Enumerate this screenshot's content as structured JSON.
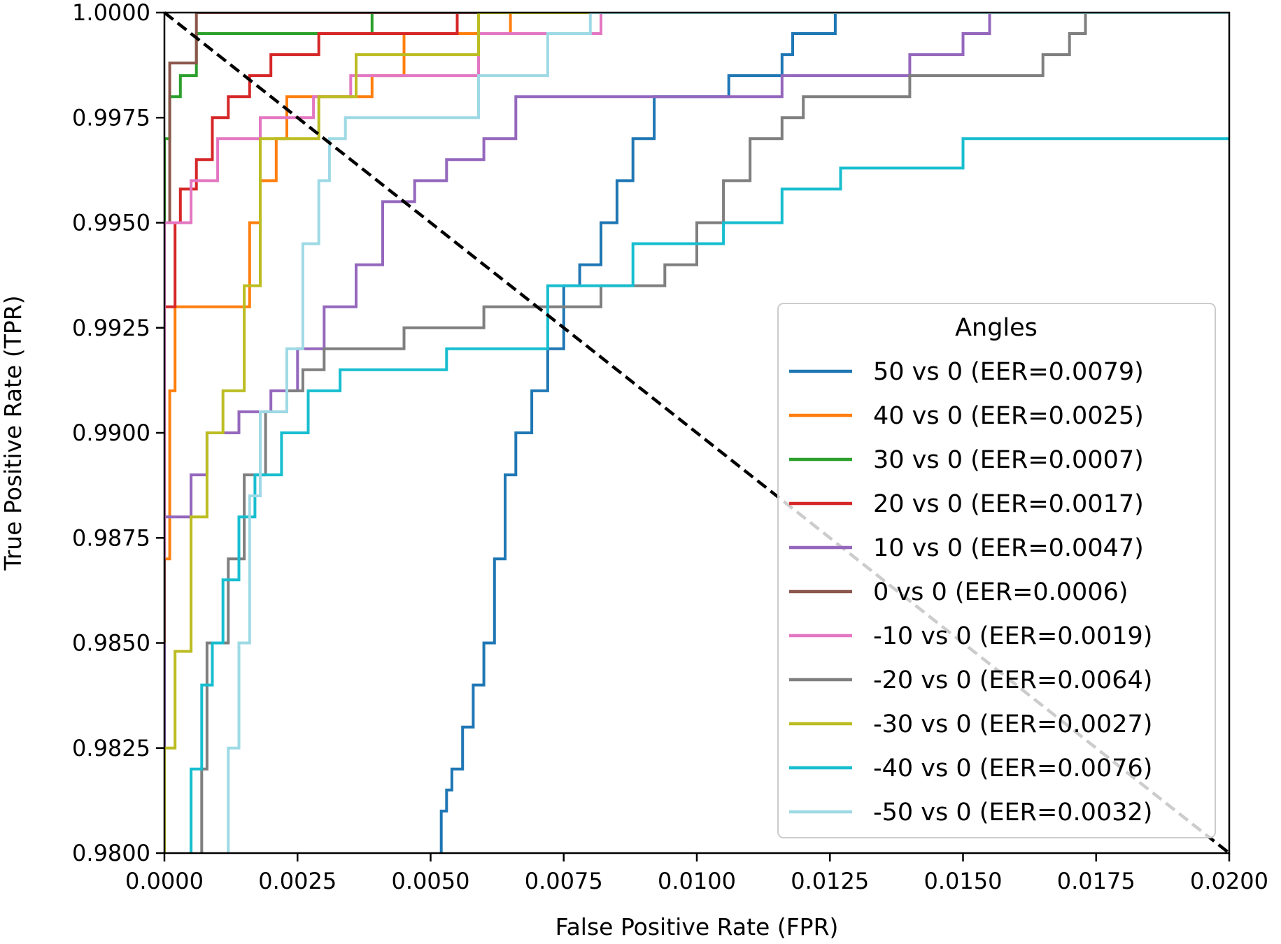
{
  "chart_data": {
    "type": "line",
    "xlabel": "False Positive Rate (FPR)",
    "ylabel": "True Positive Rate (TPR)",
    "xlim": [
      0.0,
      0.02
    ],
    "ylim": [
      0.98,
      1.0
    ],
    "xticks": [
      "0.0000",
      "0.0025",
      "0.0050",
      "0.0075",
      "0.0100",
      "0.0125",
      "0.0150",
      "0.0175",
      "0.0200"
    ],
    "yticks": [
      "0.9800",
      "0.9825",
      "0.9850",
      "0.9875",
      "0.9900",
      "0.9925",
      "0.9950",
      "0.9975",
      "1.0000"
    ],
    "grid": false,
    "legend": {
      "title": "Angles",
      "position": "lower-right"
    },
    "diagonal": {
      "style": "dashed",
      "color": "#000000",
      "x": [
        0.0,
        0.02
      ],
      "y": [
        1.0,
        0.98
      ]
    },
    "series": [
      {
        "name": "50 vs 0 (EER=0.0079)",
        "color": "#1f77b4",
        "x": [
          0.0052,
          0.0052,
          0.0053,
          0.0053,
          0.0054,
          0.0054,
          0.0056,
          0.0056,
          0.0058,
          0.0058,
          0.006,
          0.006,
          0.0062,
          0.0062,
          0.0064,
          0.0064,
          0.0066,
          0.0066,
          0.0069,
          0.0069,
          0.0072,
          0.0072,
          0.0075,
          0.0075,
          0.0078,
          0.0078,
          0.0082,
          0.0082,
          0.0085,
          0.0085,
          0.0088,
          0.0088,
          0.0092,
          0.0092,
          0.0096,
          0.0096,
          0.0106,
          0.0106,
          0.0116,
          0.0116,
          0.0118,
          0.0118,
          0.0126,
          0.0126,
          0.02
        ],
        "y": [
          0.98,
          0.981,
          0.981,
          0.9815,
          0.9815,
          0.982,
          0.982,
          0.983,
          0.983,
          0.984,
          0.984,
          0.985,
          0.985,
          0.987,
          0.987,
          0.989,
          0.989,
          0.99,
          0.99,
          0.991,
          0.991,
          0.992,
          0.992,
          0.9935,
          0.9935,
          0.994,
          0.994,
          0.995,
          0.995,
          0.996,
          0.996,
          0.997,
          0.997,
          0.998,
          0.998,
          0.998,
          0.998,
          0.9985,
          0.9985,
          0.999,
          0.999,
          0.9995,
          0.9995,
          1.0,
          1.0
        ]
      },
      {
        "name": "40 vs 0 (EER=0.0025)",
        "color": "#ff7f0e",
        "x": [
          0.0,
          0.0,
          0.0001,
          0.0001,
          0.0002,
          0.0002,
          0.0004,
          0.0004,
          0.0016,
          0.0016,
          0.0018,
          0.0018,
          0.0021,
          0.0021,
          0.0023,
          0.0023,
          0.0035,
          0.0035,
          0.0039,
          0.0039,
          0.0045,
          0.0045,
          0.0055,
          0.0055,
          0.0065,
          0.0065,
          0.02
        ],
        "y": [
          0.98,
          0.987,
          0.987,
          0.991,
          0.991,
          0.993,
          0.993,
          0.993,
          0.993,
          0.995,
          0.995,
          0.996,
          0.996,
          0.997,
          0.997,
          0.998,
          0.998,
          0.998,
          0.998,
          0.9985,
          0.9985,
          0.9995,
          0.9995,
          0.9995,
          0.9995,
          1.0,
          1.0
        ]
      },
      {
        "name": "30 vs 0 (EER=0.0007)",
        "color": "#2ca02c",
        "x": [
          0.0,
          0.0,
          0.0001,
          0.0001,
          0.0003,
          0.0003,
          0.0006,
          0.0006,
          0.0016,
          0.0016,
          0.0039,
          0.0039,
          0.02
        ],
        "y": [
          0.98,
          0.997,
          0.997,
          0.998,
          0.998,
          0.9985,
          0.9985,
          0.9995,
          0.9995,
          0.9995,
          0.9995,
          1.0,
          1.0
        ]
      },
      {
        "name": "20 vs 0 (EER=0.0017)",
        "color": "#d62728",
        "x": [
          0.0,
          0.0,
          0.0002,
          0.0002,
          0.0003,
          0.0003,
          0.0005,
          0.0005,
          0.0006,
          0.0006,
          0.0009,
          0.0009,
          0.0012,
          0.0012,
          0.0016,
          0.0016,
          0.002,
          0.002,
          0.0029,
          0.0029,
          0.0055,
          0.0055,
          0.02
        ],
        "y": [
          0.982,
          0.993,
          0.993,
          0.995,
          0.995,
          0.9958,
          0.9958,
          0.9958,
          0.9958,
          0.9965,
          0.9965,
          0.9975,
          0.9975,
          0.998,
          0.998,
          0.9985,
          0.9985,
          0.999,
          0.999,
          0.9995,
          0.9995,
          1.0,
          1.0
        ]
      },
      {
        "name": "10 vs 0 (EER=0.0047)",
        "color": "#9467bd",
        "x": [
          0.0,
          0.0,
          0.0002,
          0.0002,
          0.0005,
          0.0005,
          0.0008,
          0.0008,
          0.0014,
          0.0014,
          0.002,
          0.002,
          0.0025,
          0.0025,
          0.003,
          0.003,
          0.0036,
          0.0036,
          0.0041,
          0.0041,
          0.0047,
          0.0047,
          0.0053,
          0.0053,
          0.006,
          0.006,
          0.0066,
          0.0066,
          0.0072,
          0.0072,
          0.0116,
          0.0116,
          0.0135,
          0.0135,
          0.014,
          0.014,
          0.015,
          0.015,
          0.0155,
          0.0155,
          0.02
        ],
        "y": [
          0.982,
          0.988,
          0.988,
          0.988,
          0.988,
          0.989,
          0.989,
          0.99,
          0.99,
          0.9905,
          0.9905,
          0.991,
          0.991,
          0.992,
          0.992,
          0.993,
          0.993,
          0.994,
          0.994,
          0.9955,
          0.9955,
          0.996,
          0.996,
          0.9965,
          0.9965,
          0.997,
          0.997,
          0.998,
          0.998,
          0.998,
          0.998,
          0.9985,
          0.9985,
          0.9985,
          0.9985,
          0.999,
          0.999,
          0.9995,
          0.9995,
          1.0,
          1.0
        ]
      },
      {
        "name": "0 vs 0 (EER=0.0006)",
        "color": "#8c564b",
        "x": [
          0.0,
          0.0,
          0.0001,
          0.0001,
          0.0006,
          0.0006,
          0.0006,
          0.02
        ],
        "y": [
          0.985,
          0.995,
          0.995,
          0.9988,
          0.9988,
          0.9992,
          1.0,
          1.0
        ]
      },
      {
        "name": "-10 vs 0 (EER=0.0019)",
        "color": "#e377c2",
        "x": [
          0.0,
          0.0,
          0.0005,
          0.0005,
          0.001,
          0.001,
          0.0018,
          0.0018,
          0.0023,
          0.0023,
          0.0028,
          0.0028,
          0.0035,
          0.0035,
          0.0049,
          0.0049,
          0.0059,
          0.0059,
          0.0082,
          0.0082,
          0.02
        ],
        "y": [
          0.987,
          0.995,
          0.995,
          0.996,
          0.996,
          0.997,
          0.997,
          0.9975,
          0.9975,
          0.9975,
          0.9975,
          0.998,
          0.998,
          0.9985,
          0.9985,
          0.9985,
          0.9985,
          0.9995,
          0.9995,
          1.0,
          1.0
        ]
      },
      {
        "name": "-20 vs 0 (EER=0.0064)",
        "color": "#7f7f7f",
        "x": [
          0.0007,
          0.0007,
          0.0008,
          0.0008,
          0.0012,
          0.0012,
          0.0015,
          0.0015,
          0.0019,
          0.0019,
          0.0023,
          0.0023,
          0.0026,
          0.0026,
          0.003,
          0.003,
          0.0045,
          0.0045,
          0.006,
          0.006,
          0.0082,
          0.0082,
          0.0094,
          0.0094,
          0.01,
          0.01,
          0.0105,
          0.0105,
          0.011,
          0.011,
          0.0116,
          0.0116,
          0.012,
          0.012,
          0.014,
          0.014,
          0.0165,
          0.0165,
          0.017,
          0.017,
          0.0173,
          0.0173,
          0.02
        ],
        "y": [
          0.98,
          0.982,
          0.982,
          0.985,
          0.985,
          0.987,
          0.987,
          0.989,
          0.989,
          0.9905,
          0.9905,
          0.991,
          0.991,
          0.9915,
          0.9915,
          0.992,
          0.992,
          0.9925,
          0.9925,
          0.993,
          0.993,
          0.9935,
          0.9935,
          0.994,
          0.994,
          0.995,
          0.995,
          0.996,
          0.996,
          0.997,
          0.997,
          0.9975,
          0.9975,
          0.998,
          0.998,
          0.9985,
          0.9985,
          0.999,
          0.999,
          0.9995,
          0.9995,
          1.0,
          1.0
        ]
      },
      {
        "name": "-30 vs 0 (EER=0.0027)",
        "color": "#bcbd22",
        "x": [
          0.0,
          0.0,
          0.0002,
          0.0002,
          0.0005,
          0.0005,
          0.0008,
          0.0008,
          0.0011,
          0.0011,
          0.0015,
          0.0015,
          0.0018,
          0.0018,
          0.0025,
          0.0025,
          0.0029,
          0.0029,
          0.0036,
          0.0036,
          0.0045,
          0.0045,
          0.0059,
          0.0059,
          0.02
        ],
        "y": [
          0.98,
          0.9825,
          0.9825,
          0.9848,
          0.9848,
          0.988,
          0.988,
          0.99,
          0.99,
          0.991,
          0.991,
          0.9935,
          0.9935,
          0.997,
          0.997,
          0.997,
          0.997,
          0.998,
          0.998,
          0.999,
          0.999,
          0.999,
          0.999,
          1.0,
          1.0
        ]
      },
      {
        "name": "-40 vs 0 (EER=0.0076)",
        "color": "#17becf",
        "x": [
          0.0005,
          0.0005,
          0.0007,
          0.0007,
          0.0009,
          0.0009,
          0.0011,
          0.0011,
          0.0014,
          0.0014,
          0.0017,
          0.0017,
          0.0022,
          0.0022,
          0.0027,
          0.0027,
          0.0033,
          0.0033,
          0.0053,
          0.0053,
          0.0072,
          0.0072,
          0.0088,
          0.0088,
          0.0105,
          0.0105,
          0.0116,
          0.0116,
          0.0127,
          0.0127,
          0.015,
          0.015,
          0.0191,
          0.0191,
          0.02
        ],
        "y": [
          0.98,
          0.982,
          0.982,
          0.984,
          0.984,
          0.985,
          0.985,
          0.9865,
          0.9865,
          0.988,
          0.988,
          0.989,
          0.989,
          0.99,
          0.99,
          0.991,
          0.991,
          0.9915,
          0.9915,
          0.992,
          0.992,
          0.9935,
          0.9935,
          0.9945,
          0.9945,
          0.995,
          0.995,
          0.9958,
          0.9958,
          0.9963,
          0.9963,
          0.997,
          0.997,
          0.997,
          0.997
        ]
      },
      {
        "name": "-50 vs 0 (EER=0.0032)",
        "color": "#9edae5",
        "x": [
          0.0012,
          0.0012,
          0.0014,
          0.0014,
          0.0016,
          0.0016,
          0.0018,
          0.0018,
          0.0023,
          0.0023,
          0.0026,
          0.0026,
          0.0029,
          0.0029,
          0.0031,
          0.0031,
          0.0034,
          0.0034,
          0.0059,
          0.0059,
          0.0072,
          0.0072,
          0.008,
          0.008,
          0.02
        ],
        "y": [
          0.98,
          0.9825,
          0.9825,
          0.985,
          0.985,
          0.9885,
          0.9885,
          0.9905,
          0.9905,
          0.992,
          0.992,
          0.9945,
          0.9945,
          0.996,
          0.996,
          0.997,
          0.997,
          0.9975,
          0.9975,
          0.9985,
          0.9985,
          0.9995,
          0.9995,
          1.0,
          1.0
        ]
      }
    ]
  }
}
